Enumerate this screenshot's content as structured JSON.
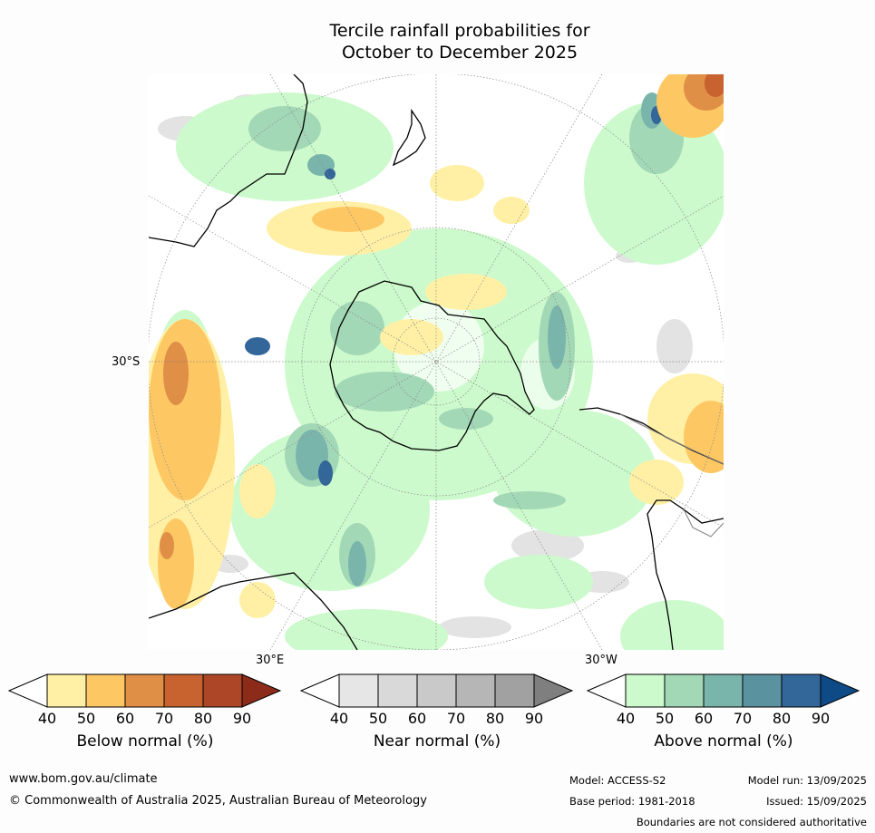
{
  "title_line1": "Tercile rainfall probabilities for",
  "title_line2": "October to December 2025",
  "map": {
    "lat_label": "30°S",
    "lon_label_east": "30°E",
    "lon_label_west": "30°W"
  },
  "colorbars": [
    {
      "label": "Below normal (%)",
      "ticks": [
        "40",
        "50",
        "60",
        "70",
        "80",
        "90"
      ],
      "colors": [
        "#fff0a6",
        "#fdc864",
        "#df8f46",
        "#c8622f",
        "#ad4626",
        "#8c2b1a"
      ]
    },
    {
      "label": "Near normal (%)",
      "ticks": [
        "40",
        "50",
        "60",
        "70",
        "80",
        "90"
      ],
      "colors": [
        "#e6e6e6",
        "#d9d9d9",
        "#c9c9c9",
        "#b6b6b6",
        "#a1a1a1",
        "#7f7f7f"
      ]
    },
    {
      "label": "Above normal (%)",
      "ticks": [
        "40",
        "50",
        "60",
        "70",
        "80",
        "90"
      ],
      "colors": [
        "#ccfacc",
        "#a3d8b6",
        "#7ab5ac",
        "#5a92a0",
        "#336699",
        "#0e4a86"
      ]
    }
  ],
  "footer": {
    "website": "www.bom.gov.au/climate",
    "copyright": "© Commonwealth of Australia 2025, Australian Bureau of Meteorology",
    "model": "Model: ACCESS-S2",
    "base_period": "Base period: 1981-2018",
    "model_run": "Model run: 13/09/2025",
    "issued": "Issued: 15/09/2025",
    "disclaimer": "Boundaries are not considered authoritative"
  }
}
